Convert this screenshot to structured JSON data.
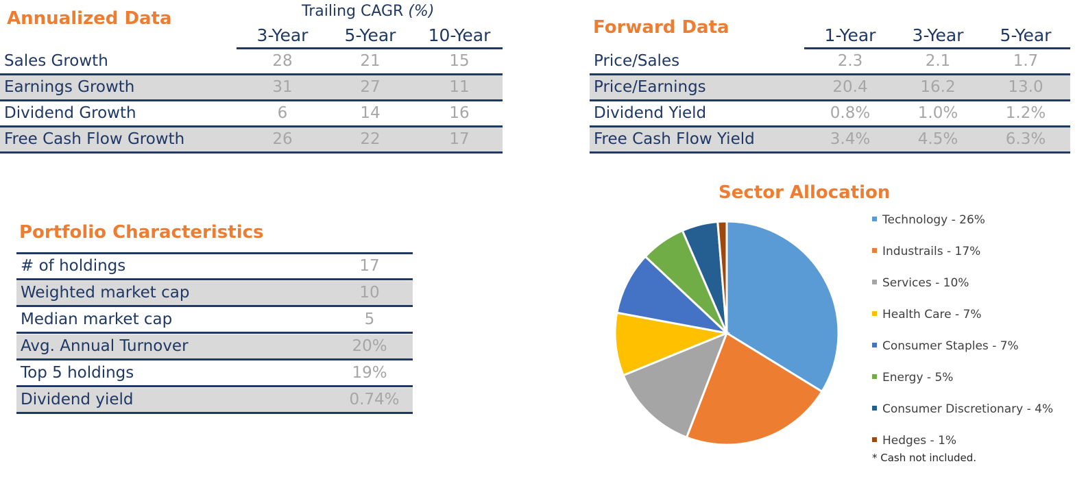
{
  "annualized": {
    "title": "Annualized Data",
    "caption_text": "Trailing CAGR",
    "caption_unit": "(%)",
    "columns": [
      "3-Year",
      "5-Year",
      "10-Year"
    ],
    "rows": [
      {
        "label": "Sales Growth",
        "values": [
          "28",
          "21",
          "15"
        ]
      },
      {
        "label": "Earnings Growth",
        "values": [
          "31",
          "27",
          "11"
        ]
      },
      {
        "label": "Dividend Growth",
        "values": [
          "6",
          "14",
          "16"
        ]
      },
      {
        "label": "Free Cash Flow Growth",
        "values": [
          "26",
          "22",
          "17"
        ]
      }
    ]
  },
  "forward": {
    "title": "Forward Data",
    "columns": [
      "1-Year",
      "3-Year",
      "5-Year"
    ],
    "rows": [
      {
        "label": "Price/Sales",
        "values": [
          "2.3",
          "2.1",
          "1.7"
        ]
      },
      {
        "label": "Price/Earnings",
        "values": [
          "20.4",
          "16.2",
          "13.0"
        ]
      },
      {
        "label": "Dividend Yield",
        "values": [
          "0.8%",
          "1.0%",
          "1.2%"
        ]
      },
      {
        "label": "Free Cash Flow Yield",
        "values": [
          "3.4%",
          "4.5%",
          "6.3%"
        ]
      }
    ]
  },
  "portfolio": {
    "title": "Portfolio Characteristics",
    "rows": [
      {
        "label": "# of holdings",
        "value": "17"
      },
      {
        "label": "Weighted market cap",
        "value": "10"
      },
      {
        "label": "Median market cap",
        "value": "5"
      },
      {
        "label": "Avg. Annual Turnover",
        "value": "20%"
      },
      {
        "label": "Top 5 holdings",
        "value": "19%"
      },
      {
        "label": "Dividend yield",
        "value": "0.74%"
      }
    ]
  },
  "chart_data": {
    "type": "pie",
    "title": "Sector Allocation",
    "categories": [
      "Technology",
      "Industrails",
      "Services",
      "Health Care",
      "Consumer Staples",
      "Energy",
      "Consumer Discretionary",
      "Hedges"
    ],
    "values": [
      26,
      17,
      10,
      7,
      7,
      5,
      4,
      1
    ],
    "legend_labels": [
      "Technology - 26%",
      "Industrails - 17%",
      "Services - 10%",
      "Health Care - 7%",
      "Consumer Staples - 7%",
      "Energy - 5%",
      "Consumer Discretionary - 4%",
      "Hedges - 1%"
    ],
    "colors": [
      "#5b9bd5",
      "#ed7d31",
      "#a5a5a5",
      "#ffc000",
      "#4472c4",
      "#70ad47",
      "#255e91",
      "#9e480e"
    ],
    "legend_position": "right",
    "footnote": "* Cash not included."
  },
  "colors": {
    "heading": "#ed7d31",
    "navy": "#1f3864",
    "value_gray": "#a6a6a6",
    "row_shade": "#d9d9d9"
  }
}
